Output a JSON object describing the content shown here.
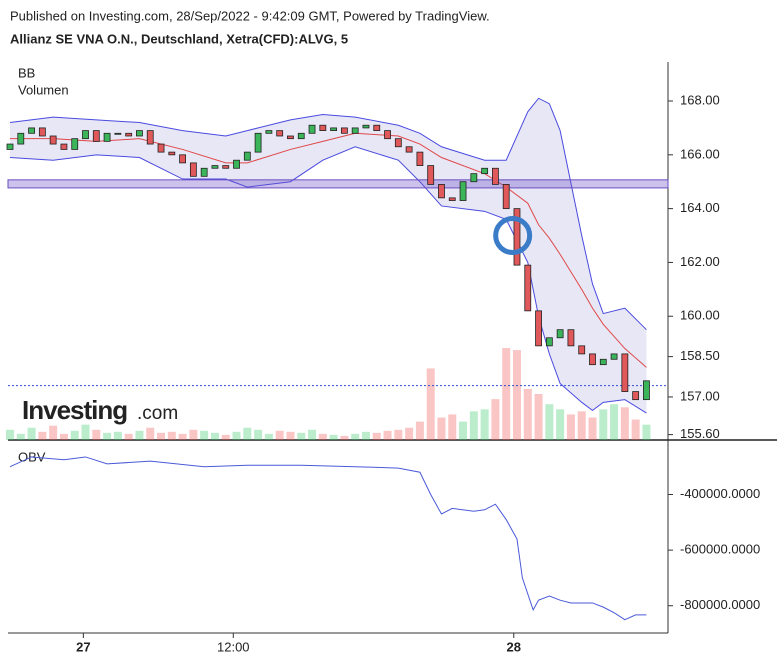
{
  "header": {
    "published": "Published on Investing.com, 28/Sep/2022 - 9:42:09 GMT, Powered by TradingView.",
    "symbol": "Allianz SE VNA O.N., Deutschland, Xetra(CFD):ALVG, 5"
  },
  "logo": {
    "name": "Investing",
    "suffix": ".com"
  },
  "chart_data": [
    {
      "type": "candlestick",
      "indicators": [
        "BB",
        "Volumen"
      ],
      "xlim": [
        0,
        61
      ],
      "xticks": [
        {
          "value": 6.8,
          "label": "27"
        },
        {
          "value": 20.7,
          "label": "12:00"
        },
        {
          "value": 46.7,
          "label": "28"
        }
      ],
      "ylim": [
        155.4,
        169.45
      ],
      "yticks": [
        {
          "value": 168,
          "label": "168.00"
        },
        {
          "value": 166,
          "label": "166.00"
        },
        {
          "value": 164,
          "label": "164.00"
        },
        {
          "value": 162,
          "label": "162.00"
        },
        {
          "value": 160,
          "label": "160.00"
        },
        {
          "value": 158.5,
          "label": "158.50"
        },
        {
          "value": 157,
          "label": "157.00"
        },
        {
          "value": 155.6,
          "label": "155.60"
        }
      ],
      "up_color": "#3cb55a",
      "down_color": "#e0585a",
      "open": [
        166.2,
        166.4,
        166.8,
        167.0,
        166.7,
        166.4,
        166.2,
        166.6,
        166.9,
        166.5,
        166.8,
        166.8,
        166.7,
        166.9,
        166.4,
        166.1,
        166.0,
        165.7,
        165.2,
        165.5,
        165.6,
        165.5,
        165.8,
        166.1,
        166.8,
        166.9,
        166.7,
        166.6,
        166.8,
        167.1,
        166.9,
        167.0,
        166.8,
        167.0,
        167.1,
        166.9,
        166.6,
        166.3,
        166.1,
        165.6,
        164.9,
        164.4,
        164.3,
        165.0,
        165.3,
        165.5,
        164.9,
        164.0,
        161.9,
        160.2,
        158.9,
        159.2,
        159.5,
        158.9,
        158.6,
        158.2,
        158.4,
        158.6,
        157.2,
        156.9
      ],
      "close": [
        166.4,
        166.8,
        167.0,
        166.7,
        166.4,
        166.2,
        166.6,
        166.9,
        166.5,
        166.8,
        166.8,
        166.7,
        166.9,
        166.4,
        166.1,
        166.0,
        165.7,
        165.2,
        165.5,
        165.6,
        165.5,
        165.8,
        166.1,
        166.8,
        166.9,
        166.7,
        166.6,
        166.8,
        167.1,
        166.9,
        167.0,
        166.8,
        167.0,
        167.1,
        166.9,
        166.6,
        166.3,
        166.1,
        165.6,
        164.9,
        164.4,
        164.3,
        165.0,
        165.3,
        165.5,
        164.9,
        164.0,
        161.9,
        160.2,
        158.9,
        159.2,
        159.5,
        158.9,
        158.6,
        158.2,
        158.4,
        158.6,
        157.2,
        156.9,
        157.6
      ],
      "volume": [
        10,
        6,
        12,
        8,
        14,
        6,
        9,
        15,
        10,
        7,
        8,
        6,
        9,
        12,
        7,
        8,
        6,
        10,
        9,
        7,
        5,
        8,
        12,
        10,
        6,
        9,
        8,
        7,
        10,
        6,
        5,
        4,
        6,
        8,
        7,
        9,
        10,
        12,
        18,
        70,
        22,
        25,
        18,
        28,
        30,
        40,
        90,
        88,
        50,
        45,
        35,
        30,
        25,
        28,
        22,
        30,
        35,
        32,
        20,
        15
      ],
      "bb": {
        "x": [
          0,
          4,
          8,
          12,
          16,
          20,
          22,
          26,
          29,
          32,
          36,
          38,
          40,
          44,
          46,
          48,
          49,
          50,
          51,
          53,
          54,
          55,
          57,
          59
        ],
        "upper": [
          167.2,
          167.4,
          167.3,
          167.2,
          166.9,
          166.7,
          166.9,
          167.3,
          167.5,
          167.4,
          167.1,
          166.8,
          166.3,
          165.8,
          165.8,
          167.6,
          168.1,
          167.9,
          166.9,
          163.0,
          161.2,
          160.1,
          160.3,
          159.5
        ],
        "middle": [
          166.6,
          166.6,
          166.5,
          166.6,
          166.2,
          165.7,
          165.7,
          166.2,
          166.5,
          166.8,
          166.7,
          166.4,
          165.9,
          165.3,
          164.8,
          164.2,
          163.4,
          162.9,
          162.3,
          161.0,
          160.3,
          159.7,
          158.8,
          158.1
        ],
        "lower": [
          165.9,
          165.8,
          166.0,
          165.9,
          165.1,
          165.1,
          164.8,
          165.0,
          165.8,
          166.3,
          165.8,
          165.0,
          164.1,
          163.9,
          163.6,
          162.0,
          160.0,
          158.6,
          157.5,
          156.8,
          156.5,
          156.8,
          156.9,
          156.4
        ]
      },
      "zone": [
        164.77,
        165.07
      ],
      "circle": {
        "x": 46.6,
        "y": 163.0
      },
      "last_price_line": 157.42
    },
    {
      "type": "line",
      "title": "OBV",
      "color": "#4a5ad8",
      "ylim": [
        -898000,
        -222000
      ],
      "yticks": [
        {
          "value": -400000,
          "label": "-400000.0000"
        },
        {
          "value": -600000,
          "label": "-600000.0000"
        },
        {
          "value": -800000,
          "label": "-800000.0000"
        }
      ],
      "x": [
        0,
        2,
        5,
        7,
        9,
        13,
        18,
        22,
        27,
        32,
        36,
        38,
        39,
        40,
        41,
        43,
        44,
        45,
        46,
        47,
        47.5,
        48.5,
        49,
        50,
        51,
        52,
        54,
        55,
        56,
        57,
        58,
        59
      ],
      "values": [
        -300000,
        -265000,
        -275000,
        -265000,
        -290000,
        -280000,
        -300000,
        -295000,
        -295000,
        -300000,
        -305000,
        -320000,
        -400000,
        -470000,
        -450000,
        -460000,
        -455000,
        -435000,
        -490000,
        -560000,
        -700000,
        -815000,
        -780000,
        -765000,
        -780000,
        -790000,
        -790000,
        -805000,
        -825000,
        -850000,
        -833000,
        -833000
      ]
    }
  ]
}
